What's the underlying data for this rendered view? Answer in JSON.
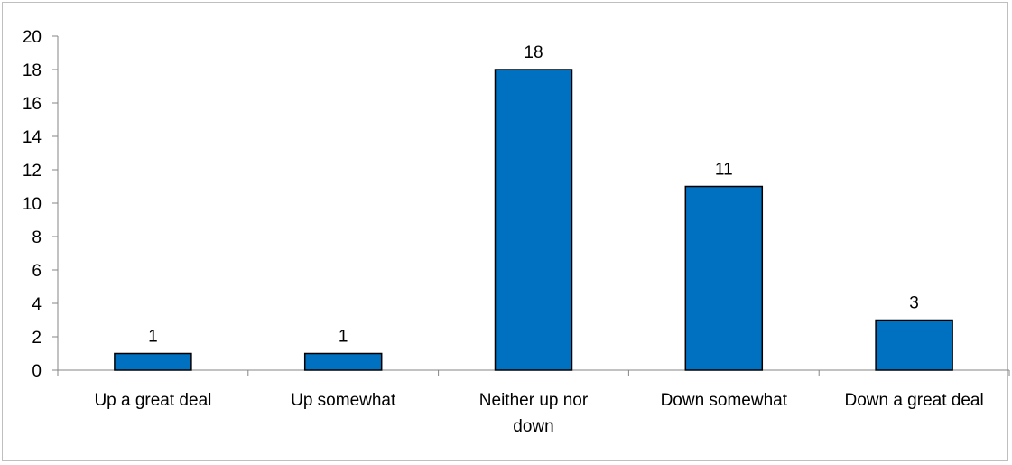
{
  "chart_data": {
    "type": "bar",
    "categories": [
      "Up a great deal",
      "Up somewhat",
      "Neither up nor down",
      "Down somewhat",
      "Down a great deal"
    ],
    "category_lines": [
      [
        "Up a great deal"
      ],
      [
        "Up somewhat"
      ],
      [
        "Neither up nor",
        "down"
      ],
      [
        "Down somewhat"
      ],
      [
        "Down a great deal"
      ]
    ],
    "values": [
      1,
      1,
      18,
      11,
      3
    ],
    "data_labels": [
      "1",
      "1",
      "18",
      "11",
      "3"
    ],
    "ylim": [
      0,
      20
    ],
    "yticks": [
      0,
      2,
      4,
      6,
      8,
      10,
      12,
      14,
      16,
      18,
      20
    ],
    "grid": false,
    "legend": "none",
    "bar_color": "#0070c0",
    "bar_edge_color": "#000000"
  }
}
